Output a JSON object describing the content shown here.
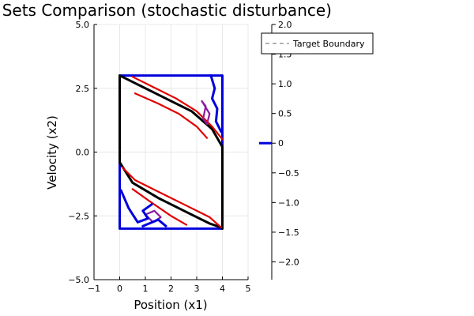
{
  "chart_data": {
    "type": "line",
    "title": "Safe Sets Comparison (stochastic disturbance)",
    "xlabel": "Position (x1)",
    "ylabel": "Velocity (x2)",
    "xlim": [
      -1,
      5
    ],
    "ylim": [
      -5,
      5
    ],
    "xticks": [
      "−1",
      "0",
      "1",
      "2",
      "3",
      "4",
      "5"
    ],
    "yticks": [
      "−5.0",
      "−2.5",
      "0.0",
      "2.5",
      "5.0"
    ],
    "colorbar": {
      "range": [
        -2.3,
        2.0
      ],
      "ticks": [
        "2.0",
        "1.5",
        "1.0",
        "0.5",
        "0",
        "−0.5",
        "−1.0",
        "−1.5",
        "−2.0"
      ],
      "zero_level_color": "#0000dd"
    },
    "grid": true,
    "legend": {
      "placement": "top-right",
      "entries": [
        "Target Boundary"
      ]
    },
    "series": [
      {
        "name": "Target Boundary",
        "style": "dashed",
        "color": "#999999",
        "points": [
          [
            0,
            -3
          ],
          [
            4,
            -3
          ],
          [
            4,
            3
          ],
          [
            0,
            3
          ],
          [
            0,
            -3
          ]
        ]
      },
      {
        "color": "#0000dd",
        "points": [
          [
            0,
            -3
          ],
          [
            4,
            -3
          ],
          [
            4,
            3
          ],
          [
            0,
            3
          ],
          [
            0,
            -3
          ]
        ]
      },
      {
        "color": "#000000",
        "points": [
          [
            0,
            3
          ],
          [
            0,
            -0.4
          ],
          [
            0.5,
            -1.2
          ],
          [
            1.5,
            -1.8
          ],
          [
            2.5,
            -2.3
          ],
          [
            3.5,
            -2.8
          ],
          [
            3.95,
            -2.95
          ],
          [
            4,
            -3
          ],
          [
            4,
            0.2
          ],
          [
            3.6,
            0.9
          ],
          [
            2.8,
            1.6
          ],
          [
            1.8,
            2.1
          ],
          [
            0.8,
            2.6
          ],
          [
            0.2,
            2.9
          ],
          [
            0,
            3
          ]
        ]
      },
      {
        "color": "#e00000",
        "points": [
          [
            0.5,
            2.95
          ],
          [
            1.2,
            2.6
          ],
          [
            2.2,
            2.1
          ],
          [
            3.0,
            1.6
          ],
          [
            3.6,
            1.0
          ],
          [
            4.0,
            0.5
          ]
        ]
      },
      {
        "color": "#e00000",
        "points": [
          [
            0.6,
            2.3
          ],
          [
            1.5,
            1.9
          ],
          [
            2.3,
            1.5
          ],
          [
            3.0,
            1.0
          ],
          [
            3.4,
            0.55
          ]
        ]
      },
      {
        "color": "#e00000",
        "points": [
          [
            0.1,
            -0.6
          ],
          [
            0.6,
            -1.1
          ],
          [
            1.5,
            -1.55
          ],
          [
            2.5,
            -2.05
          ],
          [
            3.5,
            -2.55
          ],
          [
            3.95,
            -2.95
          ]
        ]
      },
      {
        "color": "#e00000",
        "points": [
          [
            0.5,
            -1.45
          ],
          [
            1.2,
            -1.95
          ],
          [
            2.0,
            -2.5
          ],
          [
            2.6,
            -2.85
          ]
        ]
      },
      {
        "color": "#8b1a9e",
        "points": [
          [
            3.2,
            2.0
          ],
          [
            3.5,
            1.5
          ],
          [
            3.4,
            1.1
          ],
          [
            3.25,
            1.3
          ],
          [
            3.35,
            1.8
          ],
          [
            3.2,
            2.0
          ]
        ]
      },
      {
        "color": "#8b1a9e",
        "points": [
          [
            1.0,
            -2.45
          ],
          [
            1.3,
            -2.75
          ],
          [
            1.6,
            -2.55
          ],
          [
            1.35,
            -2.3
          ],
          [
            1.0,
            -2.45
          ]
        ]
      },
      {
        "color": "#0000dd",
        "points": [
          [
            3.55,
            3.0
          ],
          [
            3.7,
            2.5
          ],
          [
            3.6,
            2.1
          ],
          [
            3.8,
            1.7
          ],
          [
            3.75,
            1.2
          ],
          [
            3.95,
            0.8
          ]
        ]
      },
      {
        "color": "#0000dd",
        "points": [
          [
            0.05,
            -1.5
          ],
          [
            0.35,
            -2.2
          ],
          [
            0.7,
            -2.75
          ],
          [
            1.1,
            -2.6
          ],
          [
            0.9,
            -2.3
          ],
          [
            1.25,
            -2.05
          ]
        ]
      },
      {
        "color": "#0000dd",
        "points": [
          [
            0.9,
            -2.9
          ],
          [
            1.5,
            -2.65
          ],
          [
            1.8,
            -2.9
          ]
        ]
      }
    ]
  }
}
